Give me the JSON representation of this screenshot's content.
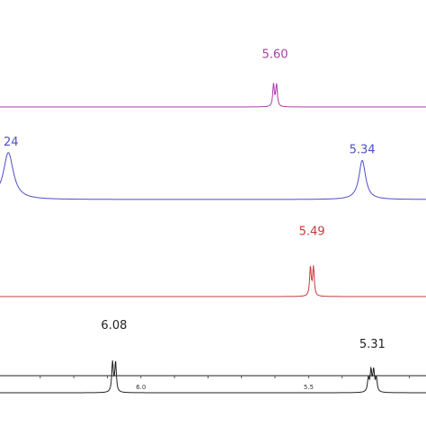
{
  "chart_data": {
    "type": "line",
    "x_axis": {
      "reversed": true,
      "range": [
        6.42,
        5.15
      ],
      "tick_labels": [
        "6.0",
        "5.5"
      ],
      "ticks": [
        6.3,
        6.2,
        6.1,
        6.0,
        5.9,
        5.8,
        5.7,
        5.6,
        5.5,
        5.4,
        5.3,
        5.2
      ]
    },
    "grid": false,
    "series": [
      {
        "color": "#aa3da8",
        "peaks": [
          {
            "x": 5.6,
            "label": "5.60",
            "type": "doublet",
            "height": 0.85
          }
        ]
      },
      {
        "color": "#4b4fc8",
        "peaks": [
          {
            "x": 6.42,
            "label": "24",
            "type": "broad-edge",
            "height": 0.9
          },
          {
            "x": 5.34,
            "label": "5.34",
            "type": "broad",
            "height": 0.75
          }
        ]
      },
      {
        "color": "#c43c3c",
        "peaks": [
          {
            "x": 5.49,
            "label": "5.49",
            "type": "doublet",
            "height": 0.92
          }
        ]
      },
      {
        "color": "#222222",
        "peaks": [
          {
            "x": 6.08,
            "label": "6.08",
            "type": "doublet",
            "height": 0.9
          },
          {
            "x": 5.31,
            "label": "5.31",
            "type": "multiplet",
            "height": 0.6
          }
        ]
      }
    ]
  }
}
